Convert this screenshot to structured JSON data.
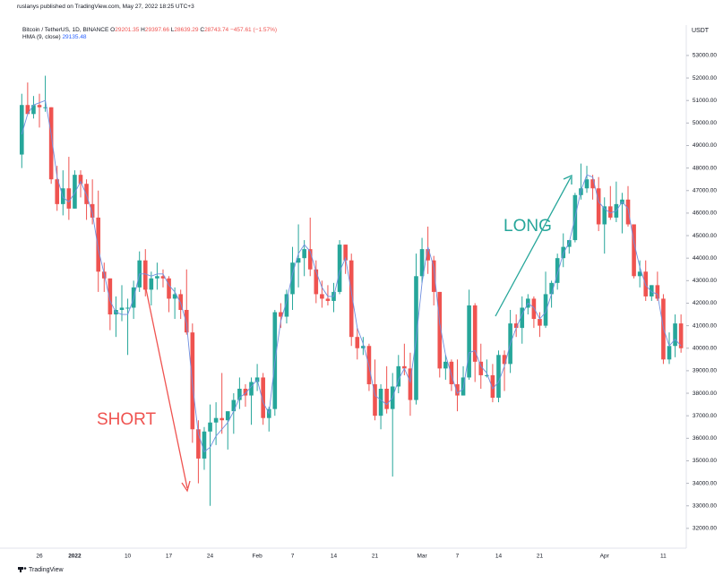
{
  "header": {
    "publisher": "ruslanys published on TradingView.com, May 27, 2022 18:25 UTC+3"
  },
  "chart_data": {
    "type": "candlestick",
    "title": "Bitcoin / TetherUS, 1D, BINANCE",
    "ohlc_info": [
      {
        "label": "O",
        "value": "29201.35"
      },
      {
        "label": "H",
        "value": "29397.66"
      },
      {
        "label": "L",
        "value": "28639.29"
      },
      {
        "label": "C",
        "value": "28743.74"
      }
    ],
    "change": "−457.61 (−1.57%)",
    "y_axis_label": "USDT",
    "up_color": "#26a69a",
    "down_color": "#ef5350",
    "grid": false,
    "categories": [
      null,
      null,
      null,
      "26",
      null,
      null,
      null,
      null,
      null,
      "2022",
      null,
      null,
      null,
      null,
      null,
      null,
      null,
      null,
      "10",
      null,
      null,
      null,
      null,
      null,
      null,
      "17",
      null,
      null,
      null,
      null,
      null,
      null,
      "24",
      null,
      null,
      null,
      null,
      null,
      null,
      null,
      "Feb",
      null,
      null,
      null,
      null,
      null,
      "7",
      null,
      null,
      null,
      null,
      null,
      null,
      "14",
      null,
      null,
      null,
      null,
      null,
      null,
      "21",
      null,
      null,
      null,
      null,
      null,
      null,
      null,
      "Mar",
      null,
      null,
      null,
      null,
      null,
      "7",
      null,
      null,
      null,
      null,
      null,
      null,
      "14",
      null,
      null,
      null,
      null,
      null,
      null,
      "21",
      null,
      null,
      null,
      null,
      null,
      null,
      null,
      null,
      null,
      null,
      "Apr",
      null,
      null,
      null,
      null,
      null,
      null,
      null,
      null,
      null,
      "11",
      null,
      null,
      null
    ],
    "open": [
      48600,
      50800,
      50400,
      50800,
      50700,
      50700,
      47500,
      46400,
      47100,
      46200,
      47700,
      47300,
      46400,
      45800,
      43400,
      43100,
      41500,
      41700,
      41800,
      41800,
      42700,
      43900,
      42600,
      43100,
      43200,
      43100,
      42200,
      42400,
      41700,
      40700,
      36400,
      35100,
      36300,
      36700,
      36900,
      36800,
      37200,
      37700,
      38200,
      37900,
      38500,
      38700,
      36900,
      37300,
      41600,
      41400,
      42400,
      43800,
      44000,
      44400,
      43500,
      42400,
      42200,
      42100,
      42500,
      44600,
      43900,
      40500,
      40000,
      40100,
      38400,
      37000,
      38200,
      37300,
      38300,
      39200,
      39100,
      37700,
      43200,
      44400,
      43900,
      42500,
      39100,
      39400,
      38400,
      37900,
      38700,
      41900,
      39400,
      38800,
      38800,
      37800,
      39700,
      39300,
      41100,
      40900,
      41800,
      42200,
      41300,
      41000,
      42400,
      42900,
      44000,
      44500,
      44800,
      46800,
      47100,
      47500,
      47100,
      45500,
      46300,
      45800,
      46400,
      46600,
      45500,
      43200,
      43400,
      42300,
      42800,
      42200,
      39500,
      40100,
      41100
    ],
    "high": [
      51300,
      51800,
      51200,
      51300,
      52100,
      50700,
      48100,
      47900,
      48500,
      47900,
      47900,
      47500,
      47500,
      47000,
      43800,
      43100,
      42300,
      42800,
      42200,
      43000,
      44300,
      44400,
      43400,
      43800,
      43500,
      43200,
      42700,
      42600,
      43500,
      41100,
      36800,
      36500,
      37500,
      37600,
      38900,
      37200,
      38000,
      38700,
      38400,
      38700,
      39300,
      38900,
      37400,
      41700,
      42000,
      42600,
      44500,
      45500,
      44800,
      45800,
      43900,
      43000,
      42800,
      42900,
      44800,
      44600,
      44200,
      40900,
      40500,
      40200,
      39500,
      38400,
      39200,
      38900,
      39700,
      40200,
      39800,
      44200,
      44900,
      45400,
      44100,
      42500,
      39700,
      39500,
      39500,
      39200,
      42600,
      42000,
      40200,
      39500,
      39300,
      39900,
      39900,
      41700,
      41500,
      42300,
      42400,
      42300,
      41600,
      43400,
      43000,
      44200,
      45100,
      44800,
      46900,
      48200,
      48100,
      47700,
      47600,
      46700,
      47200,
      47400,
      46900,
      47200,
      45500,
      43900,
      43900,
      42800,
      43400,
      42400,
      40700,
      41500,
      41500
    ],
    "low": [
      48000,
      50400,
      50200,
      49800,
      50500,
      47300,
      46100,
      45900,
      45700,
      46200,
      46700,
      45700,
      45500,
      42500,
      42500,
      40800,
      40500,
      41200,
      39700,
      41300,
      42500,
      42300,
      41900,
      42600,
      42700,
      41600,
      41300,
      41300,
      40600,
      35800,
      34000,
      34600,
      33000,
      35700,
      36200,
      35500,
      36200,
      37300,
      37400,
      36600,
      38100,
      36600,
      36300,
      37000,
      40900,
      41100,
      41700,
      42700,
      43200,
      43200,
      42000,
      41800,
      41900,
      41600,
      42400,
      43300,
      40100,
      39500,
      39700,
      38100,
      36800,
      36400,
      37100,
      34300,
      38000,
      38800,
      37000,
      37500,
      42900,
      43300,
      41900,
      38700,
      38600,
      38100,
      37200,
      37900,
      38600,
      38500,
      38200,
      38700,
      37600,
      37600,
      38100,
      38900,
      40500,
      40200,
      41500,
      40900,
      40500,
      40900,
      41800,
      42600,
      43600,
      44200,
      44700,
      46600,
      46900,
      46600,
      45200,
      44200,
      45700,
      45600,
      45100,
      45400,
      43100,
      42700,
      42100,
      42100,
      42100,
      39300,
      39300,
      39600,
      39800
    ],
    "close": [
      50800,
      50400,
      50800,
      50700,
      50700,
      47500,
      46400,
      47100,
      46200,
      47700,
      47300,
      46400,
      45800,
      43400,
      43100,
      41500,
      41700,
      41800,
      41800,
      42700,
      43900,
      42600,
      43100,
      43200,
      43100,
      42200,
      42400,
      41700,
      40700,
      36400,
      35100,
      36300,
      36700,
      36900,
      36800,
      37200,
      37700,
      38200,
      37900,
      38500,
      38700,
      36900,
      37300,
      41600,
      41400,
      42400,
      43800,
      44000,
      44400,
      43500,
      42400,
      42200,
      42100,
      42500,
      44600,
      43900,
      40500,
      40000,
      40100,
      38400,
      37000,
      38200,
      37300,
      38300,
      39200,
      39100,
      37700,
      43200,
      44400,
      43900,
      42500,
      39100,
      39400,
      38400,
      37900,
      38700,
      41900,
      39400,
      38800,
      38800,
      37800,
      39700,
      39300,
      41100,
      40900,
      41800,
      42200,
      41300,
      41000,
      42400,
      42900,
      44000,
      44500,
      44800,
      46800,
      47100,
      47500,
      47100,
      45500,
      46300,
      45800,
      46400,
      46600,
      45500,
      43200,
      43400,
      42300,
      42800,
      42200,
      39500,
      40100,
      41100,
      40000
    ],
    "series": [
      {
        "name": "HMA (9, close)",
        "color": "#6f8fe0",
        "legend_value": "29135.48",
        "values": [
          49500,
          50400,
          50800,
          50900,
          51000,
          49500,
          47600,
          46700,
          46500,
          46900,
          47400,
          46800,
          46000,
          44400,
          43300,
          42100,
          41600,
          41500,
          41500,
          42200,
          43300,
          43300,
          43200,
          43300,
          43300,
          42800,
          42500,
          42000,
          41100,
          38400,
          36200,
          35400,
          35600,
          36100,
          36400,
          36700,
          37200,
          37800,
          38000,
          38300,
          38600,
          37600,
          37100,
          39400,
          41200,
          42100,
          43300,
          44200,
          44600,
          44300,
          43400,
          42700,
          42300,
          42300,
          43400,
          44000,
          42500,
          40900,
          40200,
          39200,
          37900,
          37700,
          37500,
          37800,
          38600,
          39100,
          38500,
          40400,
          42900,
          44500,
          43600,
          41100,
          39700,
          38800,
          38000,
          38200,
          39800,
          39900,
          39200,
          38900,
          38200,
          38500,
          39200,
          40200,
          40900,
          41500,
          42000,
          41800,
          41300,
          41600,
          42400,
          43300,
          44200,
          44700,
          45800,
          47000,
          47700,
          47600,
          46500,
          46200,
          46000,
          46100,
          46500,
          46200,
          44700,
          43600,
          42800,
          42500,
          42400,
          40900,
          40100,
          40400,
          40100
        ]
      }
    ],
    "ylim": [
      31120,
      54270
    ],
    "yticks": [
      {
        "value": 32000,
        "label": "32000.00"
      },
      {
        "value": 33000,
        "label": "33000.00"
      },
      {
        "value": 34000,
        "label": "34000.00"
      },
      {
        "value": 35000,
        "label": "35000.00"
      },
      {
        "value": 36000,
        "label": "36000.00"
      },
      {
        "value": 37000,
        "label": "37000.00"
      },
      {
        "value": 38000,
        "label": "38000.00"
      },
      {
        "value": 39000,
        "label": "39000.00"
      },
      {
        "value": 40000,
        "label": "40000.00"
      },
      {
        "value": 41000,
        "label": "41000.00"
      },
      {
        "value": 42000,
        "label": "42000.00"
      },
      {
        "value": 43000,
        "label": "43000.00"
      },
      {
        "value": 44000,
        "label": "44000.00"
      },
      {
        "value": 45000,
        "label": "45000.00"
      },
      {
        "value": 46000,
        "label": "46000.00"
      },
      {
        "value": 47000,
        "label": "47000.00"
      },
      {
        "value": 48000,
        "label": "48000.00"
      },
      {
        "value": 49000,
        "label": "49000.00"
      },
      {
        "value": 50000,
        "label": "50000.00"
      },
      {
        "value": 51000,
        "label": "51000.00"
      },
      {
        "value": 52000,
        "label": "52000.00"
      },
      {
        "value": 53000,
        "label": "53000.00"
      }
    ],
    "annotations": [
      {
        "text": "SHORT",
        "color": "#ef5350"
      },
      {
        "text": "LONG",
        "color": "#26a69a"
      }
    ]
  },
  "footer": {
    "brand": "TradingView"
  }
}
